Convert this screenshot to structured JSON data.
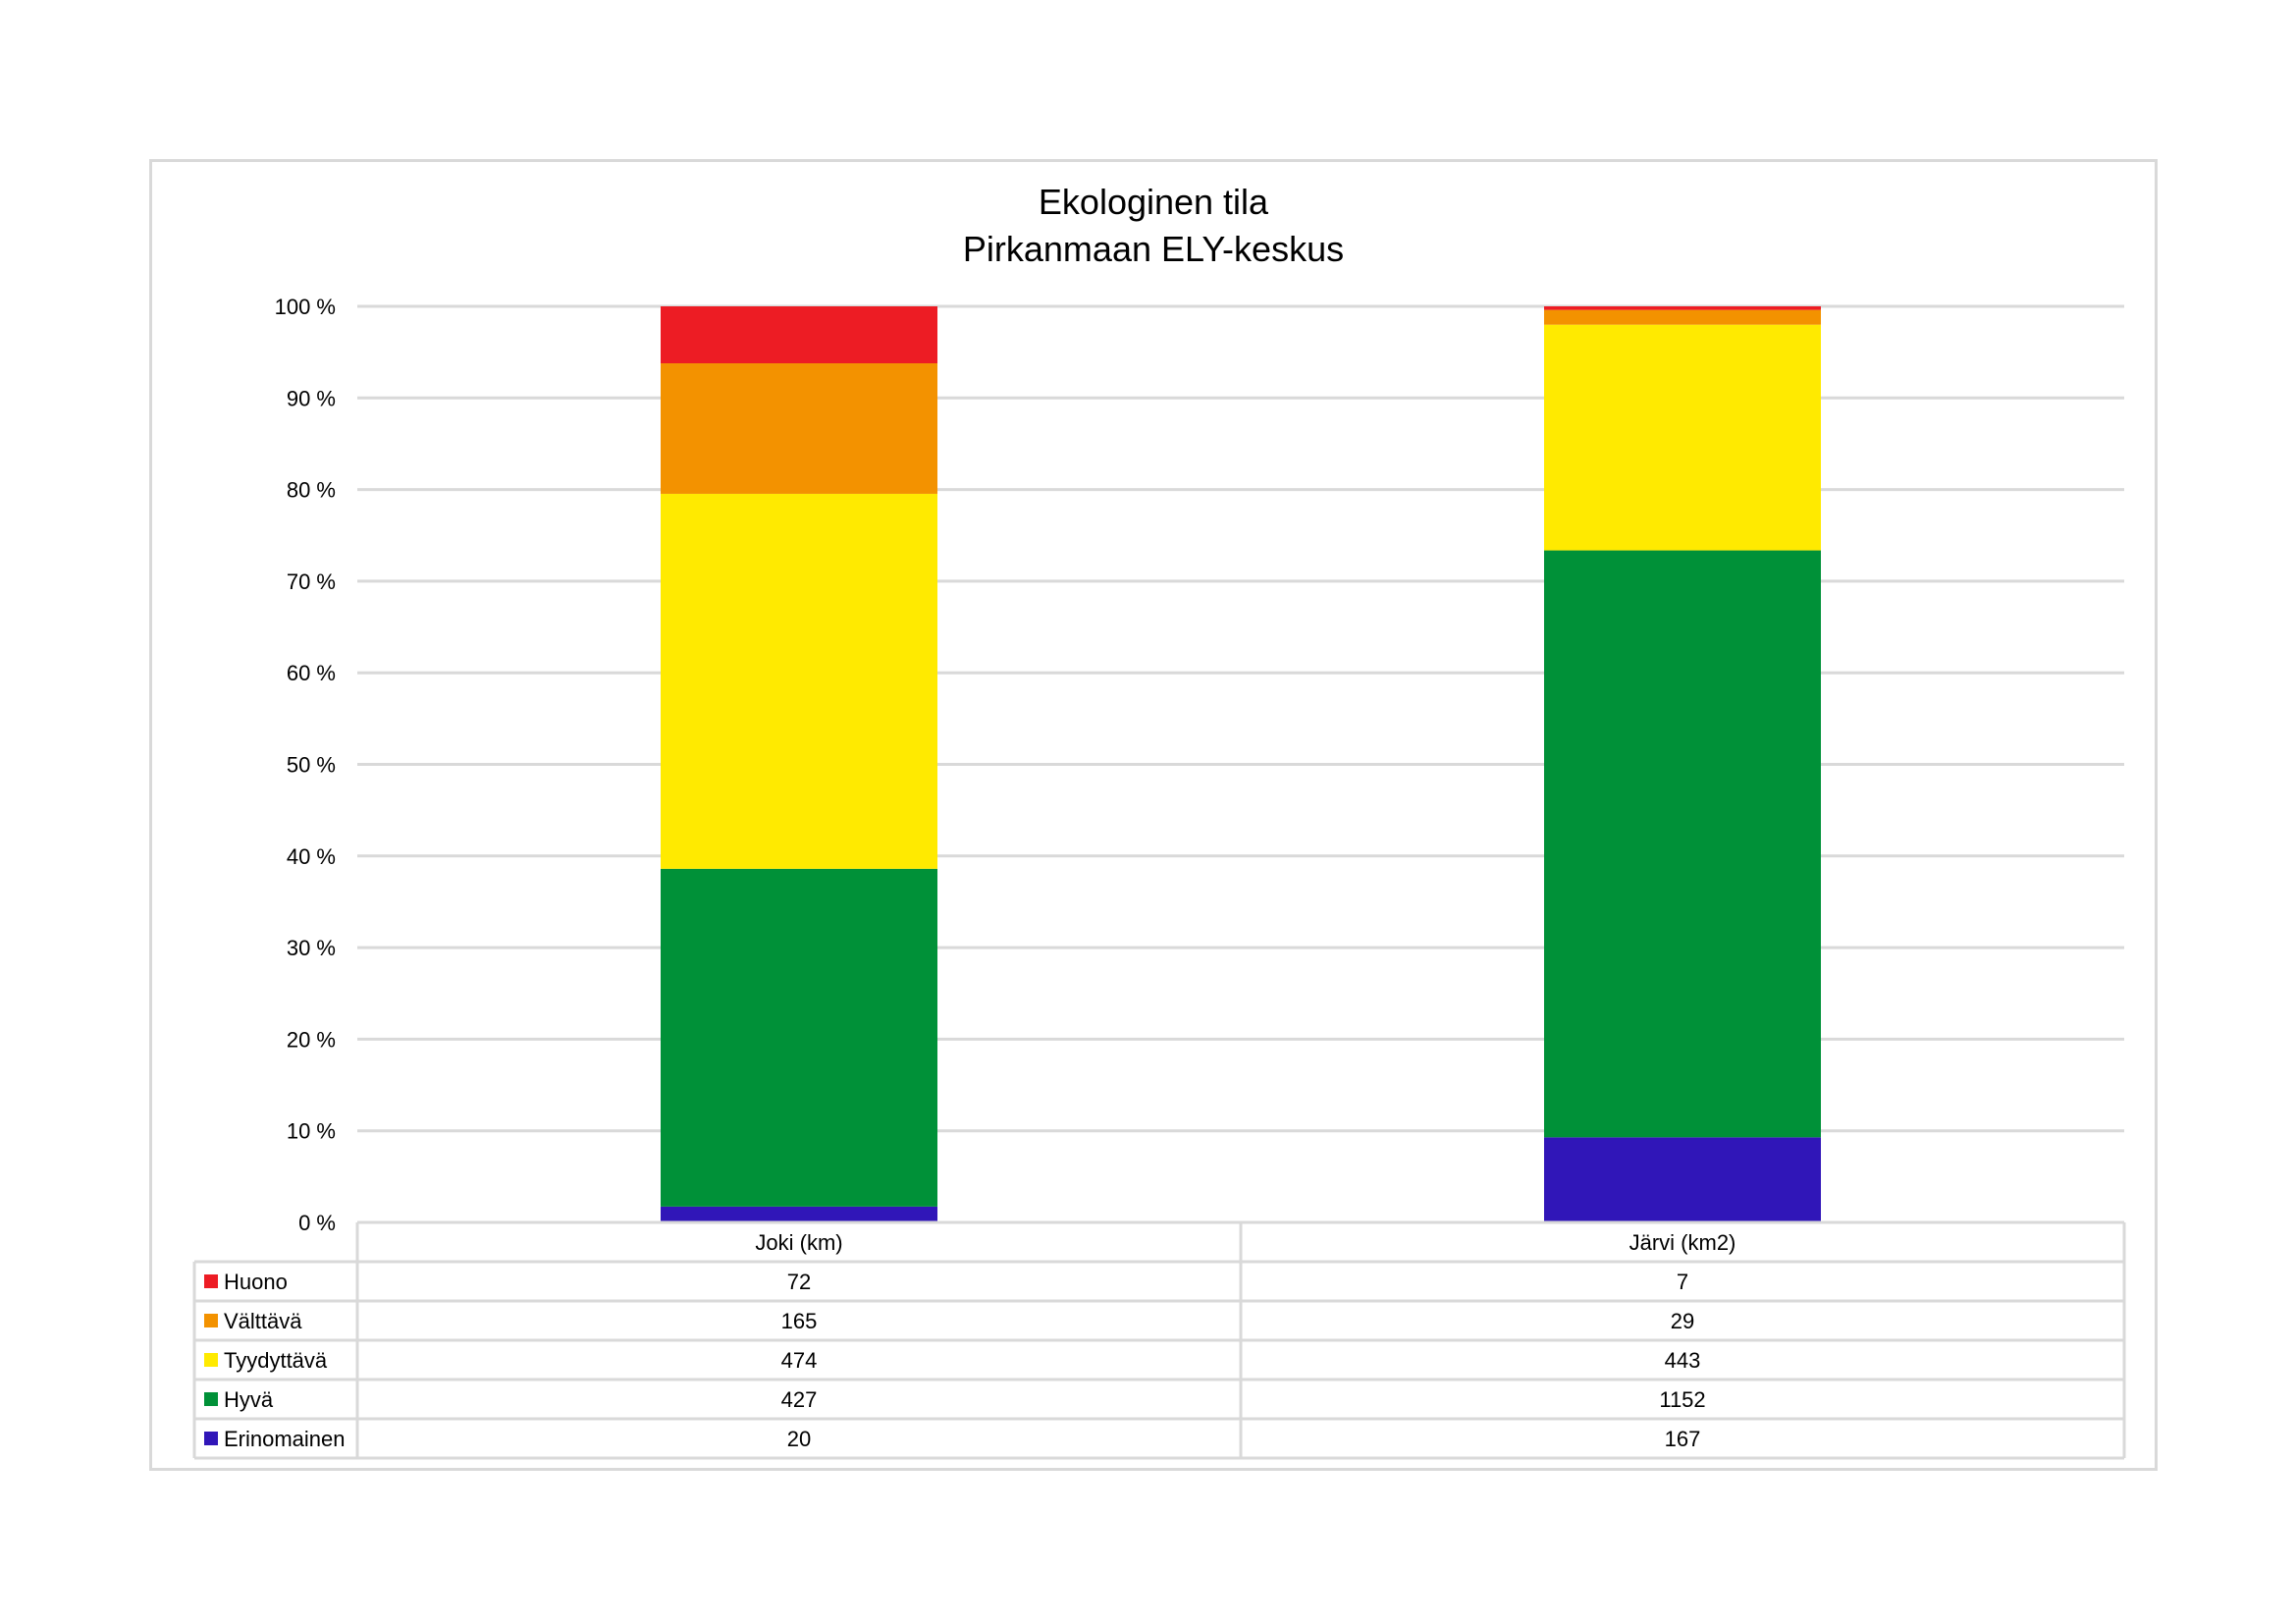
{
  "chart_data": {
    "type": "bar",
    "stacked": "percent",
    "title": [
      "Ekologinen tila",
      "Pirkanmaan ELY-keskus"
    ],
    "categories": [
      "Joki (km)",
      "Järvi (km2)"
    ],
    "series": [
      {
        "name": "Erinomainen",
        "color": "#3016b8",
        "values": [
          20,
          167
        ]
      },
      {
        "name": "Hyvä",
        "color": "#009138",
        "values": [
          427,
          1152
        ]
      },
      {
        "name": "Tyydyttävä",
        "color": "#ffea00",
        "values": [
          474,
          443
        ]
      },
      {
        "name": "Välttävä",
        "color": "#f39200",
        "values": [
          165,
          29
        ]
      },
      {
        "name": "Huono",
        "color": "#ed1c24",
        "values": [
          72,
          7
        ]
      }
    ],
    "table_row_order": [
      "Huono",
      "Välttävä",
      "Tyydyttävä",
      "Hyvä",
      "Erinomainen"
    ],
    "yticks": [
      "0 %",
      "10 %",
      "20 %",
      "30 %",
      "40 %",
      "50 %",
      "60 %",
      "70 %",
      "80 %",
      "90 %",
      "100 %"
    ],
    "ylim": [
      0,
      100
    ],
    "grid": true,
    "legend": "data-table"
  }
}
